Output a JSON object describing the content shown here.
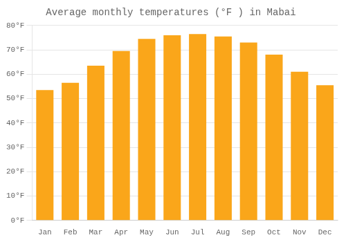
{
  "chart_data": {
    "type": "bar",
    "title": "Average monthly temperatures (°F ) in Mabai",
    "categories": [
      "Jan",
      "Feb",
      "Mar",
      "Apr",
      "May",
      "Jun",
      "Jul",
      "Aug",
      "Sep",
      "Oct",
      "Nov",
      "Dec"
    ],
    "values": [
      53.5,
      56.5,
      63.5,
      69.5,
      74.5,
      76.0,
      76.5,
      75.5,
      73.0,
      68.0,
      61.0,
      55.5
    ],
    "color": "#FAA61A",
    "ylim": [
      0,
      80
    ],
    "yticks": [
      {
        "value": 0,
        "label": "0°F"
      },
      {
        "value": 10,
        "label": "10°F"
      },
      {
        "value": 20,
        "label": "20°F"
      },
      {
        "value": 30,
        "label": "30°F"
      },
      {
        "value": 40,
        "label": "40°F"
      },
      {
        "value": 50,
        "label": "50°F"
      },
      {
        "value": 60,
        "label": "60°F"
      },
      {
        "value": 70,
        "label": "70°F"
      },
      {
        "value": 80,
        "label": "80°F"
      }
    ],
    "grid": true
  }
}
